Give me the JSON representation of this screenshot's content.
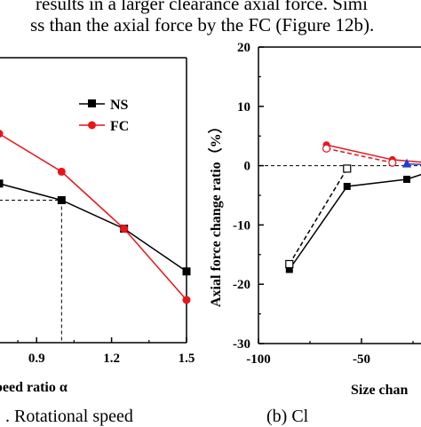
{
  "text": {
    "line1": "results in a larger clearance axial force. Simi",
    "line2": "ss than the axial force by the FC (Figure 12b).",
    "caption_a": ". Rotational speed",
    "caption_b": "(b) Cl"
  },
  "chart_data": [
    {
      "type": "line",
      "xlabel": "peed ratio α",
      "ylabel": "",
      "xlim": [
        0.75,
        1.5
      ],
      "x_ticks": [
        "0.9",
        "1.2",
        "1.5"
      ],
      "legend": {
        "placement": "top-right",
        "entries": [
          "NS",
          "FC"
        ]
      },
      "series": [
        {
          "name": "NS",
          "color": "#000000",
          "marker": "square",
          "x": [
            0.75,
            1.0,
            1.25,
            1.5
          ],
          "y": [
            0.47,
            0.4,
            0.28,
            0.1
          ]
        },
        {
          "name": "FC",
          "color": "#e8141b",
          "marker": "circle",
          "x": [
            0.75,
            1.0,
            1.25,
            1.5
          ],
          "y": [
            0.68,
            0.52,
            0.28,
            -0.02
          ]
        }
      ],
      "reference_point": {
        "x": 1.0,
        "y": 0.4
      },
      "ylim": [
        -0.2,
        1.0
      ]
    },
    {
      "type": "line",
      "ylabel": "Axial force change ratio（%）",
      "xlabel": "Size chan",
      "ylim": [
        -30,
        20
      ],
      "xlim": [
        -100,
        -8
      ],
      "y_ticks": [
        "20",
        "10",
        "0",
        "-10",
        "-20",
        "-30"
      ],
      "x_ticks": [
        "-100",
        "-50"
      ],
      "series": [
        {
          "color": "#000000",
          "marker": "square",
          "style": "solid",
          "x": [
            -85,
            -57,
            -28,
            -8
          ],
          "y": [
            -17.5,
            -3.5,
            -2.3,
            0.0
          ]
        },
        {
          "color": "#000000",
          "marker": "square-open",
          "style": "dashed",
          "x": [
            -85,
            -57
          ],
          "y": [
            -16.6,
            -0.5
          ]
        },
        {
          "color": "#e8141b",
          "marker": "circle",
          "style": "solid",
          "x": [
            -67,
            -35,
            -8
          ],
          "y": [
            3.5,
            1.0,
            0.2
          ]
        },
        {
          "color": "#e8141b",
          "marker": "circle-open",
          "style": "dashed",
          "x": [
            -67,
            -35
          ],
          "y": [
            2.9,
            0.5
          ]
        },
        {
          "color": "#1f3fd6",
          "marker": "triangle",
          "style": "solid",
          "x": [
            -28,
            -8
          ],
          "y": [
            0.3,
            0.0
          ]
        }
      ]
    }
  ]
}
